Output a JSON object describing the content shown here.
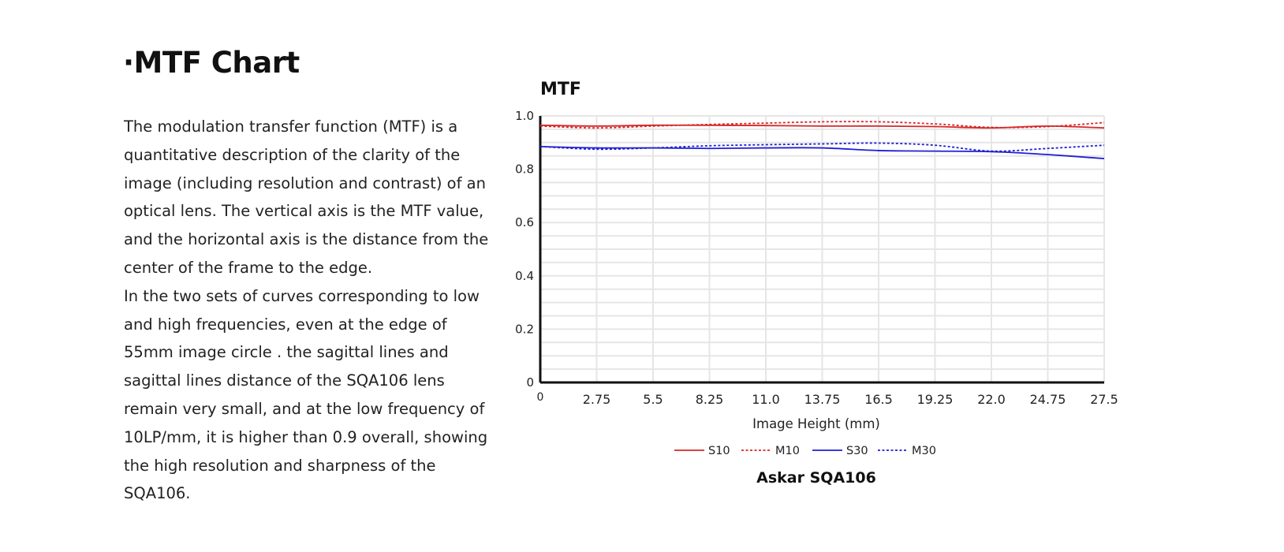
{
  "page": {
    "title": "·MTF Chart",
    "description": [
      "The modulation transfer function (MTF) is a quantitative description of the clarity of the image (including resolution and contrast) of an optical lens. The vertical axis is the MTF value, and the horizontal axis is the distance from the center of the frame to the edge.",
      "In the two sets of curves corresponding to low and high frequencies, even at the edge of 55mm image circle . the sagittal lines and sagittal lines distance of the SQA106 lens remain very small, and at the low frequency of 10LP/mm, it is higher than 0.9 overall, showing the high resolution and sharpness of the SQA106."
    ]
  },
  "chart_data": {
    "type": "line",
    "title": "MTF",
    "subtitle": "Askar SQA106",
    "xlabel": "Image Height (mm)",
    "ylabel": "",
    "xlim": [
      0,
      27.5
    ],
    "ylim": [
      0,
      1.0
    ],
    "x_ticks": [
      0,
      2.75,
      5.5,
      8.25,
      11.0,
      13.75,
      16.5,
      19.25,
      22.0,
      24.75,
      27.5
    ],
    "x_tick_labels": [
      "0",
      "2.75",
      "5.5",
      "8.25",
      "11.0",
      "13.75",
      "16.5",
      "19.25",
      "22.0",
      "24.75",
      "27.5"
    ],
    "y_ticks": [
      0,
      0.2,
      0.4,
      0.6,
      0.8,
      1.0
    ],
    "y_tick_labels": [
      "0",
      "0.2",
      "0.4",
      "0.6",
      "0.8",
      "1.0"
    ],
    "grid": true,
    "legend_position": "bottom-center",
    "x": [
      0,
      2.75,
      5.5,
      8.25,
      11.0,
      13.75,
      16.5,
      19.25,
      22.0,
      24.75,
      27.5
    ],
    "series": [
      {
        "name": "S10",
        "color": "#d62728",
        "dash": "solid",
        "values": [
          0.965,
          0.962,
          0.965,
          0.965,
          0.964,
          0.962,
          0.962,
          0.96,
          0.955,
          0.962,
          0.955
        ]
      },
      {
        "name": "M10",
        "color": "#d62728",
        "dash": "dotted",
        "values": [
          0.962,
          0.955,
          0.962,
          0.968,
          0.973,
          0.978,
          0.978,
          0.97,
          0.957,
          0.96,
          0.975
        ]
      },
      {
        "name": "S30",
        "color": "#1f1fd6",
        "dash": "solid",
        "values": [
          0.885,
          0.88,
          0.88,
          0.878,
          0.88,
          0.88,
          0.87,
          0.868,
          0.866,
          0.855,
          0.84
        ]
      },
      {
        "name": "M30",
        "color": "#1f1fd6",
        "dash": "dotted",
        "values": [
          0.885,
          0.875,
          0.88,
          0.888,
          0.892,
          0.895,
          0.898,
          0.89,
          0.868,
          0.878,
          0.89
        ]
      }
    ]
  }
}
